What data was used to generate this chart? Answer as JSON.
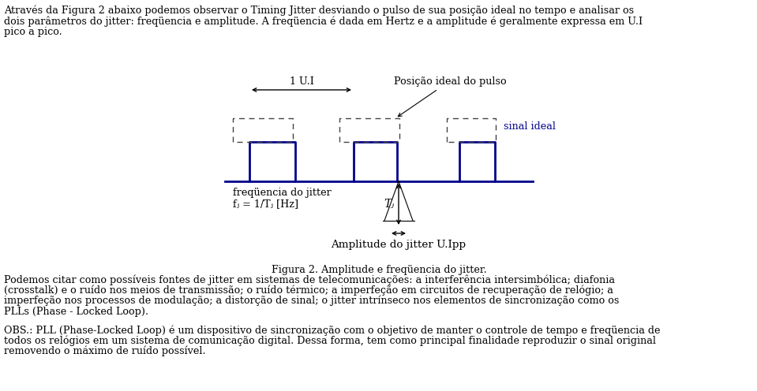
{
  "bg_color": "#ffffff",
  "text_color": "#000000",
  "signal_color": "#00008B",
  "fig_width": 9.59,
  "fig_height": 4.96,
  "para1": "Através da Figura 2 abaixo podemos observar o Timing Jitter desviando o pulso de sua posição ideal no tempo e analisar os",
  "para1b": "dois parâmetros do jitter: freqüencia e amplitude. A freqüencia é dada em Hertz e a amplitude é geralmente expressa em U.I",
  "para1c": "pico a pico.",
  "label_1UI": "1 U.I",
  "label_posicao": "Posição ideal do pulso",
  "label_freq": "freqüencia do jitter",
  "label_fj": "fⱼ = 1/Tⱼ [Hz]",
  "label_Tj": "Tⱼ",
  "label_sinal": "sinal ideal",
  "label_amplitude": "Amplitude do jitter U.Ipp",
  "label_figura": "Figura 2. Amplitude e freqüencia do jitter.",
  "para2": "Podemos citar como possíveis fontes de jitter em sistemas de telecomunicações: a interferência intersimbólica; diafonia",
  "para2b": "(crosstalk) e o ruído nos meios de transmissão; o ruído térmico; a imperfeção em circuitos de recuperação de relógio; a",
  "para2c": "imperfeção nos processos de modulação; a distorção de sinal; o jitter intrínseco nos elementos de sincronização como os",
  "para2d": "PLLs (Phase - Locked Loop).",
  "para3": "OBS.: PLL (Phase-Locked Loop) é um dispositivo de sincronização com o objetivo de manter o controle de tempo e freqüencia de",
  "para3b": "todos os relógios em um sistema de comunicação digital. Dessa forma, tem como principal finalidade reproduzir o sinal original",
  "para3c": "removendo o máximo de ruído possível."
}
